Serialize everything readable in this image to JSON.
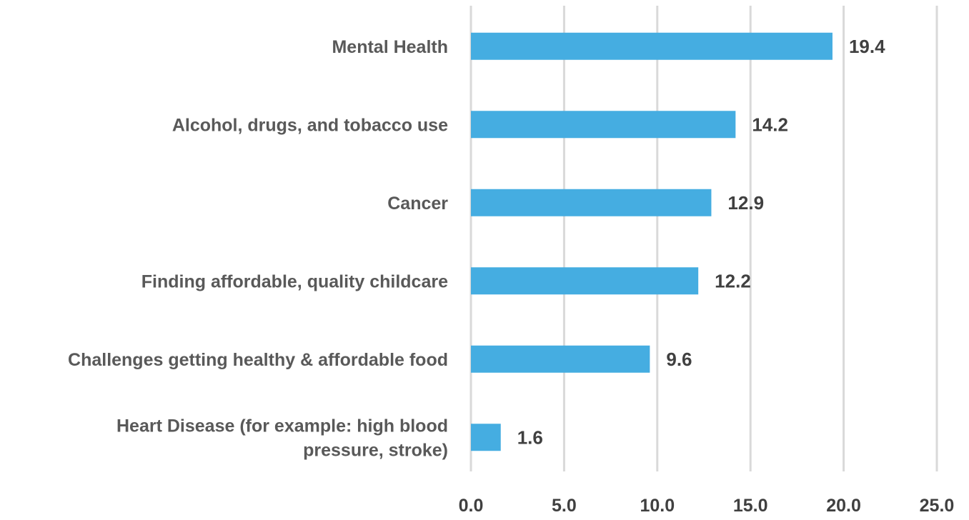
{
  "chart_data": {
    "type": "bar",
    "orientation": "horizontal",
    "categories": [
      "Mental Health",
      "Alcohol, drugs, and tobacco use",
      "Cancer",
      "Finding affordable, quality childcare",
      "Challenges getting healthy & affordable food",
      [
        "Heart Disease (for example: high blood",
        "pressure, stroke)"
      ]
    ],
    "values": [
      19.4,
      14.2,
      12.9,
      12.2,
      9.6,
      1.6
    ],
    "value_labels": [
      "19.4",
      "14.2",
      "12.9",
      "12.2",
      "9.6",
      "1.6"
    ],
    "x_ticks": [
      "0.0",
      "5.0",
      "10.0",
      "15.0",
      "20.0",
      "25.0"
    ],
    "xlim": [
      0,
      25
    ],
    "grid": "vertical",
    "bar_color": "#45ade1",
    "title": "",
    "xlabel": "",
    "ylabel": ""
  }
}
